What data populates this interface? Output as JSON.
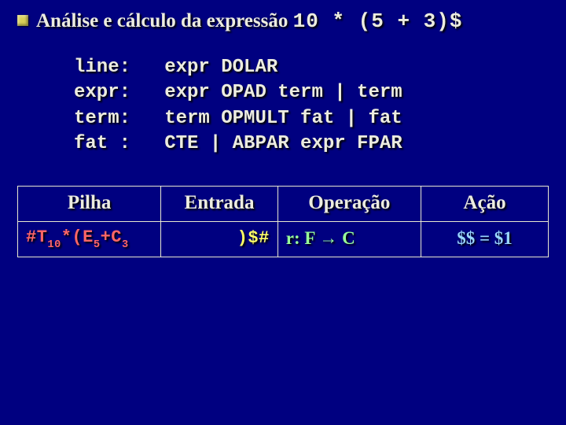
{
  "title_prefix": "Análise e cálculo da expressão ",
  "title_expr": "10 * (5 + 3)$",
  "grammar": "line:   expr DOLAR\nexpr:   expr OPAD term | term\nterm:   term OPMULT fat | fat\nfat :   CTE | ABPAR expr FPAR",
  "headers": {
    "pilha": "Pilha",
    "entrada": "Entrada",
    "op": "Operação",
    "acao": "Ação"
  },
  "row": {
    "pilha_html": "#T<span class=\"sub\">10</span>*(E<span class=\"sub\">5</span>+C<span class=\"sub\">3</span>",
    "entrada": ")$#",
    "op": "r: F → C",
    "acao": "$$ = $1"
  },
  "colors": {
    "background": "#000080",
    "text": "#ecece0",
    "border": "#e8e8d0",
    "bullet": "#d8cf58",
    "pilha": "#ff6666",
    "entrada": "#ffff66",
    "op": "#99ff99",
    "acao": "#99d6ff"
  },
  "fontsizes": {
    "title": 25,
    "grammar": 24,
    "th": 25,
    "td": 22
  }
}
